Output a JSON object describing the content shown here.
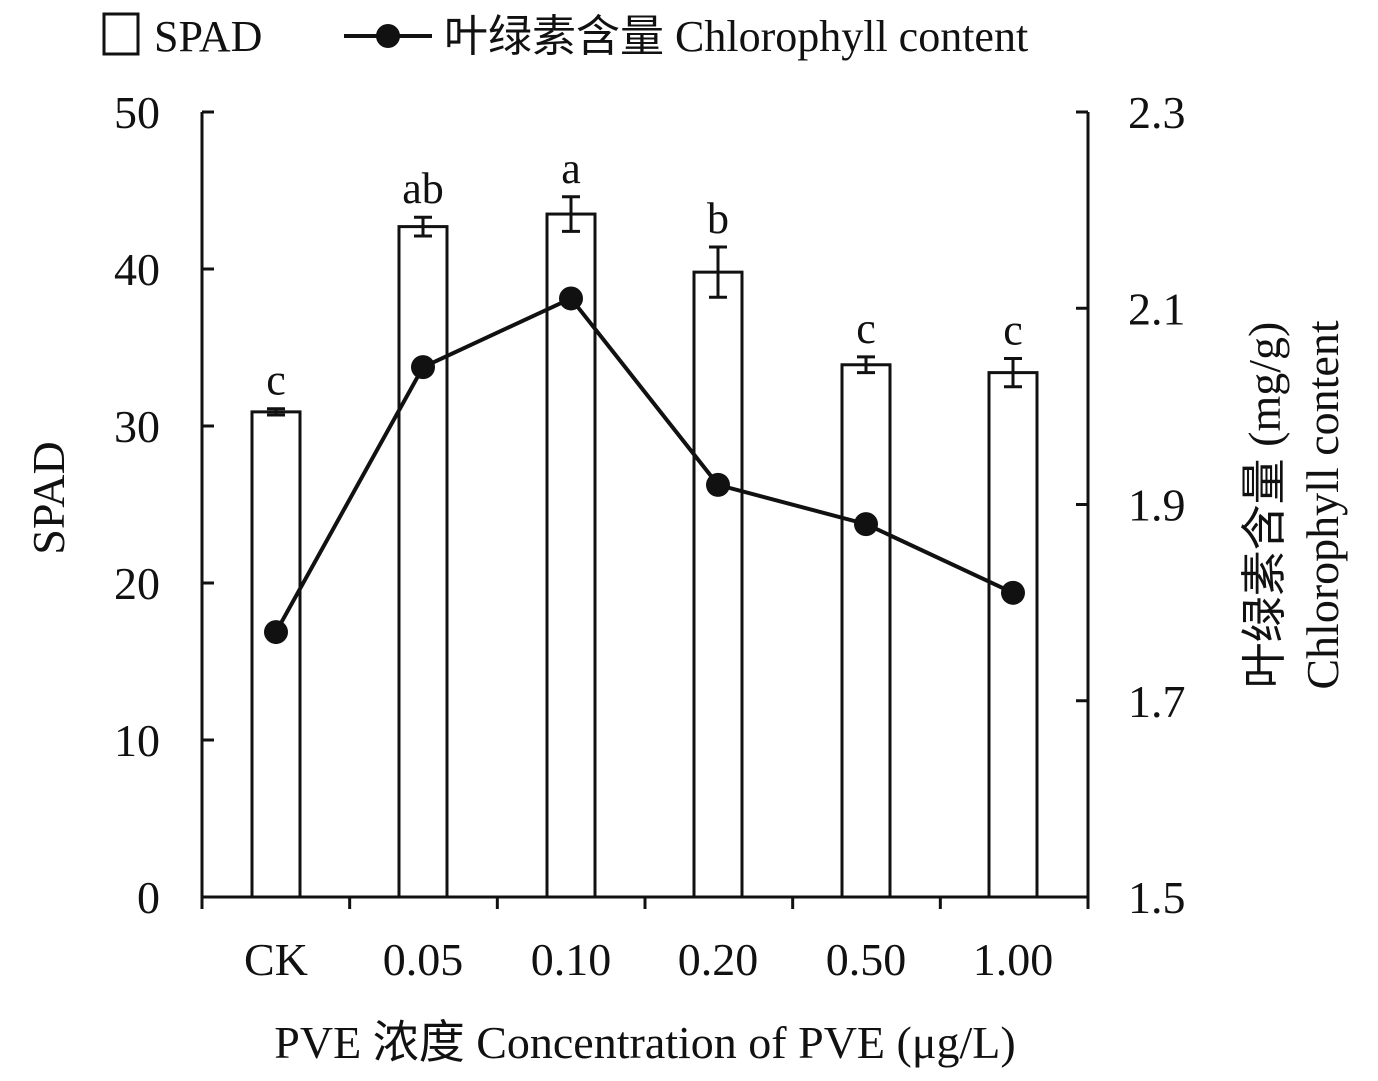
{
  "chart_data": {
    "type": "bar",
    "categories": [
      "CK",
      "0.05",
      "0.10",
      "0.20",
      "0.50",
      "1.00"
    ],
    "series": [
      {
        "name": "SPAD",
        "kind": "bar",
        "axis": "left",
        "values": [
          30.9,
          42.7,
          43.5,
          39.8,
          33.9,
          33.4
        ],
        "errors": [
          0.2,
          0.6,
          1.1,
          1.6,
          0.5,
          0.9
        ],
        "significance": [
          "c",
          "ab",
          "a",
          "b",
          "c",
          "c"
        ]
      },
      {
        "name": "叶绿素含量 Chlorophyll content",
        "kind": "line",
        "axis": "right",
        "values": [
          1.77,
          2.04,
          2.11,
          1.92,
          1.88,
          1.81
        ]
      }
    ],
    "xlabel": "PVE 浓度 Concentration of PVE (μg/L)",
    "ylabel": "SPAD",
    "ylabel_right_line1": "叶绿素含量 (mg/g)",
    "ylabel_right_line2": "Chlorophyll content",
    "ylim": [
      0,
      50
    ],
    "yticks": [
      "0",
      "10",
      "20",
      "30",
      "40",
      "50"
    ],
    "ylim_right": [
      1.5,
      2.3
    ],
    "yticks_right": [
      "1.5",
      "1.7",
      "1.9",
      "2.1",
      "2.3"
    ],
    "grid": false,
    "legend_position": "top",
    "colors": {
      "bar_fill": "#ffffff",
      "stroke": "#111111"
    }
  }
}
